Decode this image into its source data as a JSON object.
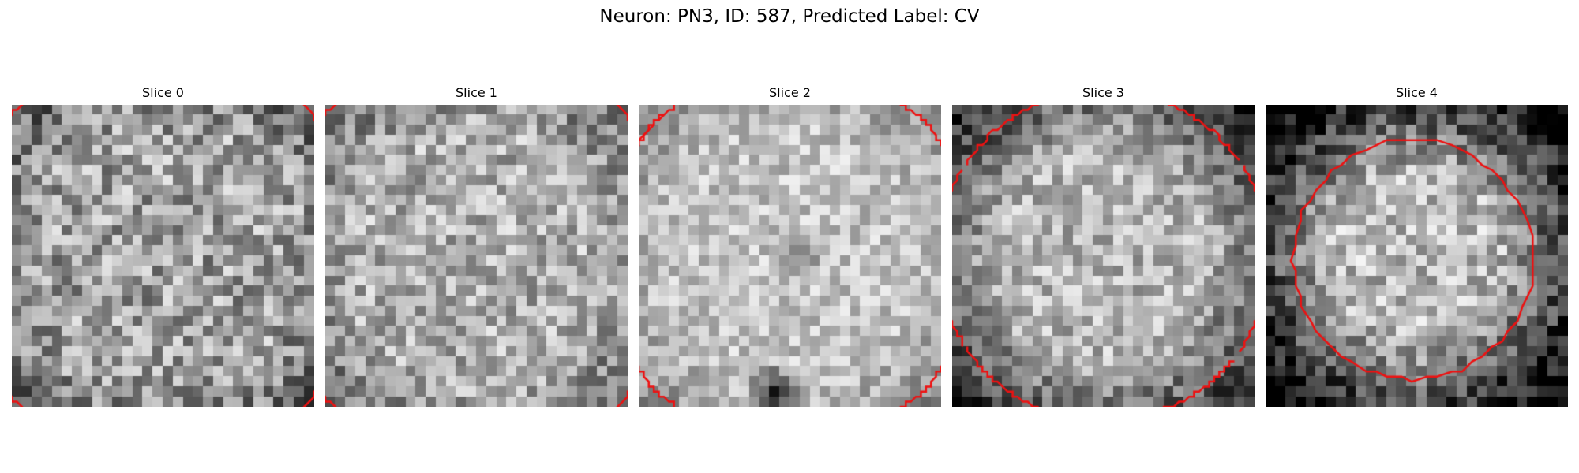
{
  "figure": {
    "title": "Neuron: PN3, ID: 587, Predicted Label: CV"
  },
  "slices": [
    {
      "title": "Slice 0"
    },
    {
      "title": "Slice 1"
    },
    {
      "title": "Slice 2"
    },
    {
      "title": "Slice 3"
    },
    {
      "title": "Slice 4"
    }
  ],
  "colors": {
    "contour": "#ee1111",
    "background": "#ffffff"
  }
}
